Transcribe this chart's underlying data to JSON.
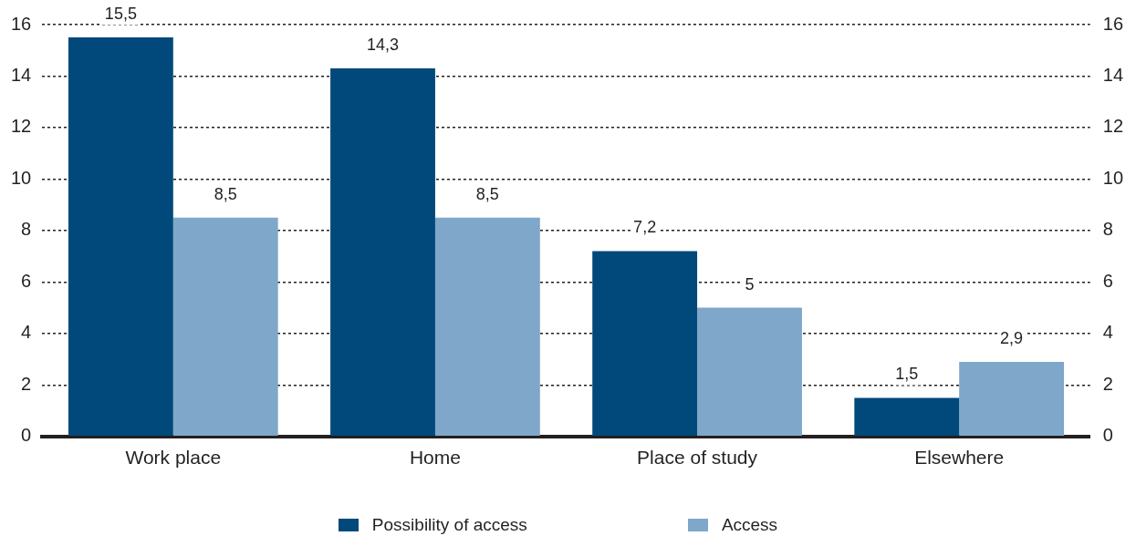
{
  "chart_data": {
    "type": "bar",
    "categories": [
      "Work place",
      "Home",
      "Place of study",
      "Elsewhere"
    ],
    "series": [
      {
        "name": "Possibility of access",
        "color": "#00497a",
        "values": [
          15.5,
          14.3,
          7.2,
          1.5
        ],
        "value_labels": [
          "15,5",
          "14,3",
          "7,2",
          "1,5"
        ]
      },
      {
        "name": "Access",
        "color": "#7ea7ca",
        "values": [
          8.5,
          8.5,
          5,
          2.9
        ],
        "value_labels": [
          "8,5",
          "8,5",
          "5",
          "2,9"
        ]
      }
    ],
    "ylim": [
      0,
      16
    ],
    "yticks": [
      0,
      2,
      4,
      6,
      8,
      10,
      12,
      14,
      16
    ],
    "y2lim": [
      0,
      16
    ],
    "y2ticks": [
      0,
      2,
      4,
      6,
      8,
      10,
      12,
      14,
      16
    ],
    "grid": "y",
    "legend": "bottom"
  }
}
